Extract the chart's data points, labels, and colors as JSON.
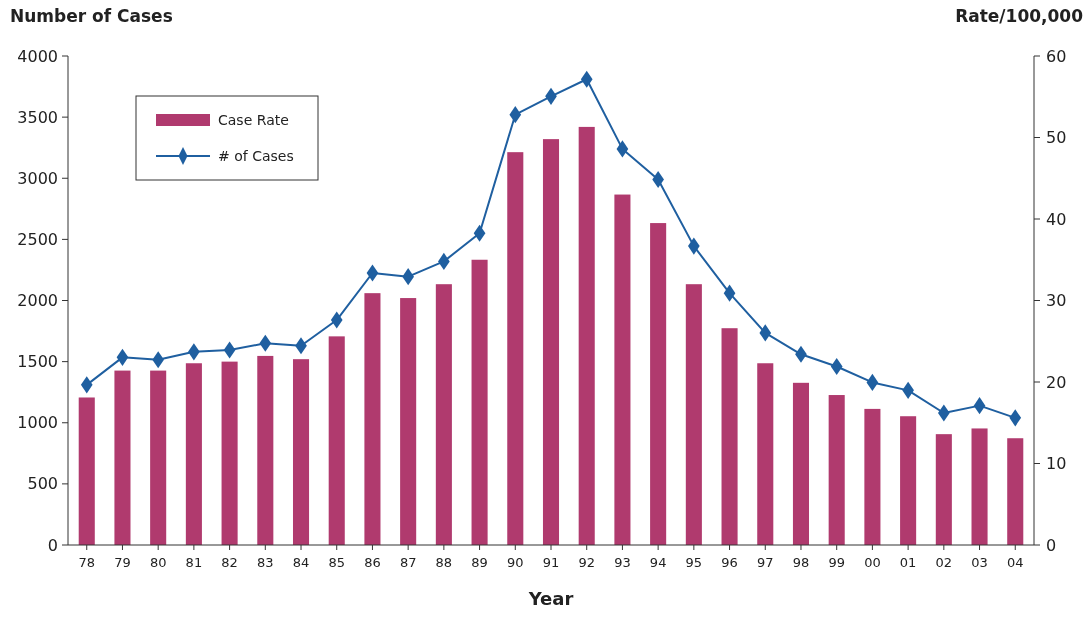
{
  "chart_data": {
    "type": "bar",
    "xlabel": "Year",
    "ylabel": "Number of Cases",
    "y2label": "Rate/100,000",
    "categories": [
      "78",
      "79",
      "80",
      "81",
      "82",
      "83",
      "84",
      "85",
      "86",
      "87",
      "88",
      "89",
      "90",
      "91",
      "92",
      "93",
      "94",
      "95",
      "96",
      "97",
      "98",
      "99",
      "00",
      "01",
      "02",
      "03",
      "04"
    ],
    "series": [
      {
        "name": "Case Rate",
        "axis": "y2",
        "color": "#b03a6e",
        "values": [
          18.1,
          21.4,
          21.4,
          22.3,
          22.5,
          23.2,
          22.8,
          25.6,
          30.9,
          30.3,
          32.0,
          35.0,
          48.2,
          49.8,
          51.3,
          43.0,
          39.5,
          32.0,
          26.6,
          22.3,
          19.9,
          18.4,
          16.7,
          15.8,
          13.6,
          14.3,
          13.1
        ]
      },
      {
        "name": "# of Cases",
        "type": "line",
        "axis": "y",
        "color": "#1f5fa0",
        "marker": "diamond",
        "values": [
          1310,
          1535,
          1515,
          1580,
          1595,
          1650,
          1630,
          1840,
          2225,
          2195,
          2320,
          2550,
          3520,
          3670,
          3810,
          3240,
          2990,
          2445,
          2060,
          1735,
          1560,
          1460,
          1330,
          1265,
          1080,
          1140,
          1040
        ]
      }
    ],
    "ylim": [
      0,
      4000
    ],
    "yticks": [
      0,
      500,
      1000,
      1500,
      2000,
      2500,
      3000,
      3500,
      4000
    ],
    "y2lim": [
      0,
      60
    ],
    "y2ticks": [
      0,
      10,
      20,
      30,
      40,
      50,
      60
    ],
    "legend": "top left",
    "grid": false
  }
}
